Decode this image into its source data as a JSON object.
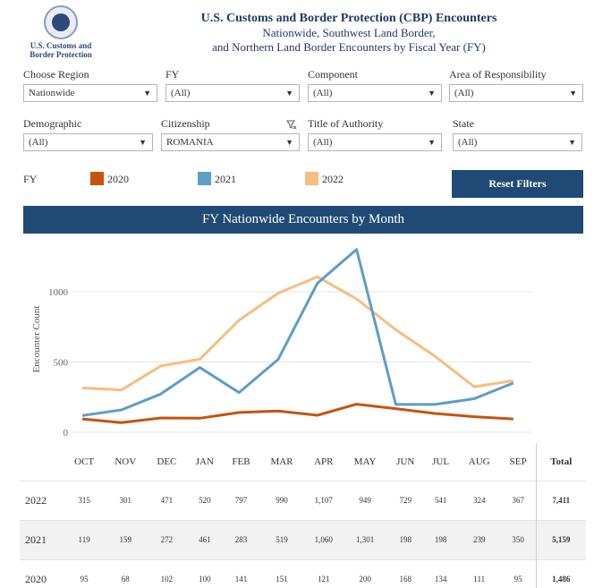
{
  "header": {
    "logo_text": "U.S. Customs and Border Protection",
    "title": "U.S. Customs and Border Protection (CBP) Encounters",
    "subtitle_1": "Nationwide, Southwest Land Border,",
    "subtitle_2": "and Northern Land Border Encounters by Fiscal Year (FY)"
  },
  "filters": {
    "region": {
      "label": "Choose Region",
      "value": "Nationwide"
    },
    "fy": {
      "label": "FY",
      "value": "(All)"
    },
    "component": {
      "label": "Component",
      "value": "(All)"
    },
    "aor": {
      "label": "Area of Responsibility",
      "value": "(All)"
    },
    "demographic": {
      "label": "Demographic",
      "value": "(All)"
    },
    "citizenship": {
      "label": "Citizenship",
      "value": "ROMANIA"
    },
    "authority": {
      "label": "Title of Authority",
      "value": "(All)"
    },
    "state": {
      "label": "State",
      "value": "(All)"
    }
  },
  "legend": {
    "label": "FY",
    "items": [
      {
        "name": "2020",
        "color": "#c4540f"
      },
      {
        "name": "2021",
        "color": "#5e9dc8"
      },
      {
        "name": "2022",
        "color": "#f8bd7f"
      }
    ]
  },
  "reset_label": "Reset Filters",
  "chart_title": "FY Nationwide Encounters by Month",
  "chart_data": {
    "type": "line",
    "ylabel": "Encounter Count",
    "ylim": [
      0,
      1350
    ],
    "yticks": [
      0,
      500,
      1000
    ],
    "ytick_labels": [
      "0",
      "500",
      "1000"
    ],
    "categories": [
      "OCT",
      "NOV",
      "DEC",
      "JAN",
      "FEB",
      "MAR",
      "APR",
      "MAY",
      "JUN",
      "JUL",
      "AUG",
      "SEP"
    ],
    "grid": true,
    "series": [
      {
        "name": "2020",
        "color": "#c4540f",
        "values": [
          95,
          68,
          102,
          100,
          141,
          151,
          121,
          200,
          168,
          134,
          111,
          95
        ]
      },
      {
        "name": "2021",
        "color": "#5e9dc8",
        "values": [
          119,
          159,
          272,
          461,
          283,
          519,
          1060,
          1301,
          198,
          198,
          239,
          350
        ]
      },
      {
        "name": "2022",
        "color": "#f8bd7f",
        "values": [
          315,
          301,
          471,
          520,
          797,
          990,
          1107,
          949,
          729,
          541,
          324,
          367
        ]
      }
    ]
  },
  "table": {
    "total_header": "Total",
    "rows": [
      {
        "year": "2022",
        "cells": [
          "315",
          "301",
          "471",
          "520",
          "797",
          "990",
          "1,107",
          "949",
          "729",
          "541",
          "324",
          "367"
        ],
        "total": "7,411"
      },
      {
        "year": "2021",
        "cells": [
          "119",
          "159",
          "272",
          "461",
          "283",
          "519",
          "1,060",
          "1,301",
          "198",
          "198",
          "239",
          "350"
        ],
        "total": "5,159"
      },
      {
        "year": "2020",
        "cells": [
          "95",
          "68",
          "102",
          "100",
          "141",
          "151",
          "121",
          "200",
          "168",
          "134",
          "111",
          "95"
        ],
        "total": "1,486"
      }
    ]
  }
}
